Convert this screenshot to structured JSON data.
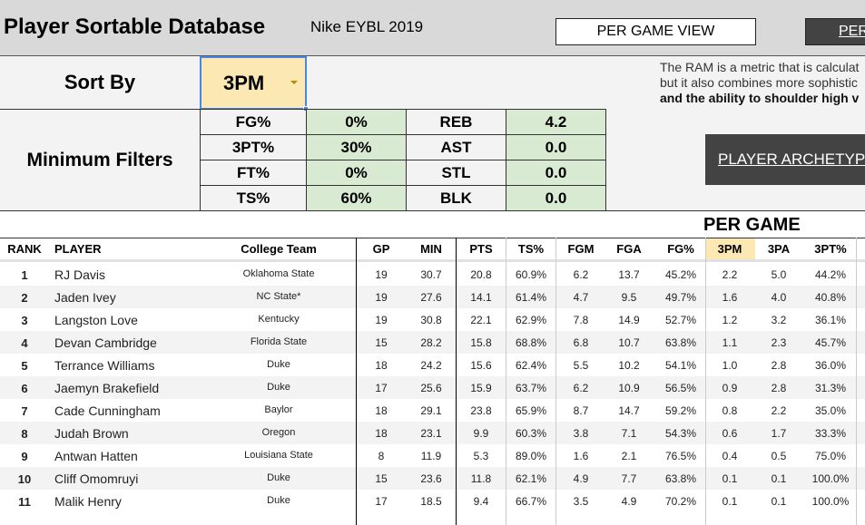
{
  "header": {
    "title": "Player Sortable Database",
    "subtitle": "Nike EYBL 2019",
    "per_game_view": "PER GAME VIEW",
    "per_other_button": "PER"
  },
  "sort": {
    "label": "Sort By",
    "value": "3PM"
  },
  "filters": {
    "label": "Minimum Filters",
    "items": [
      {
        "stat": "FG%",
        "value": "0%",
        "stat2": "REB",
        "value2": "4.2"
      },
      {
        "stat": "3PT%",
        "value": "30%",
        "stat2": "AST",
        "value2": "0.0"
      },
      {
        "stat": "FT%",
        "value": "0%",
        "stat2": "STL",
        "value2": "0.0"
      },
      {
        "stat": "TS%",
        "value": "60%",
        "stat2": "BLK",
        "value2": "0.0"
      }
    ]
  },
  "ram_text": {
    "line1": "The RAM is a metric that is calculat",
    "line2": "but it also combines more sophistic",
    "line3": "and the ability to shoulder high v"
  },
  "archetype_button": "PLAYER ARCHETYP",
  "section_header": "PER GAME",
  "colors": {
    "highlight": "#fce8b2",
    "filter_green": "#d9ead3",
    "dark_button": "#434343"
  },
  "table": {
    "columns": [
      "RANK",
      "PLAYER",
      "College Team",
      "GP",
      "MIN",
      "PTS",
      "TS%",
      "FGM",
      "FGA",
      "FG%",
      "3PM",
      "3PA",
      "3PT%"
    ],
    "rows": [
      [
        "1",
        "RJ Davis",
        "Oklahoma State",
        "19",
        "30.7",
        "20.8",
        "60.9%",
        "6.2",
        "13.7",
        "45.2%",
        "2.2",
        "5.0",
        "44.2%"
      ],
      [
        "2",
        "Jaden Ivey",
        "NC State*",
        "19",
        "27.6",
        "14.1",
        "61.4%",
        "4.7",
        "9.5",
        "49.7%",
        "1.6",
        "4.0",
        "40.8%"
      ],
      [
        "3",
        "Langston Love",
        "Kentucky",
        "19",
        "30.8",
        "22.1",
        "62.9%",
        "7.8",
        "14.9",
        "52.7%",
        "1.2",
        "3.2",
        "36.1%"
      ],
      [
        "4",
        "Devan Cambridge",
        "Florida State",
        "15",
        "28.2",
        "15.8",
        "68.8%",
        "6.8",
        "10.7",
        "63.8%",
        "1.1",
        "2.3",
        "45.7%"
      ],
      [
        "5",
        "Terrance Williams",
        "Duke",
        "18",
        "24.2",
        "15.6",
        "62.4%",
        "5.5",
        "10.2",
        "54.1%",
        "1.0",
        "2.8",
        "36.0%"
      ],
      [
        "6",
        "Jaemyn Brakefield",
        "Duke",
        "17",
        "25.6",
        "15.9",
        "63.7%",
        "6.2",
        "10.9",
        "56.5%",
        "0.9",
        "2.8",
        "31.3%"
      ],
      [
        "7",
        "Cade Cunningham",
        "Baylor",
        "18",
        "29.1",
        "23.8",
        "65.9%",
        "8.7",
        "14.7",
        "59.2%",
        "0.8",
        "2.2",
        "35.0%"
      ],
      [
        "8",
        "Judah Brown",
        "Oregon",
        "18",
        "23.1",
        "9.9",
        "60.3%",
        "3.8",
        "7.1",
        "54.3%",
        "0.6",
        "1.7",
        "33.3%"
      ],
      [
        "9",
        "Antwan Hatten",
        "Louisiana State",
        "8",
        "11.9",
        "5.3",
        "89.0%",
        "1.6",
        "2.1",
        "76.5%",
        "0.4",
        "0.5",
        "75.0%"
      ],
      [
        "10",
        "Cliff Omomruyi",
        "Duke",
        "15",
        "23.6",
        "11.8",
        "62.1%",
        "4.9",
        "7.7",
        "63.8%",
        "0.1",
        "0.1",
        "100.0%"
      ],
      [
        "11",
        "Malik Henry",
        "Duke",
        "17",
        "18.5",
        "9.4",
        "66.7%",
        "3.5",
        "4.9",
        "70.2%",
        "0.1",
        "0.1",
        "100.0%"
      ]
    ]
  }
}
